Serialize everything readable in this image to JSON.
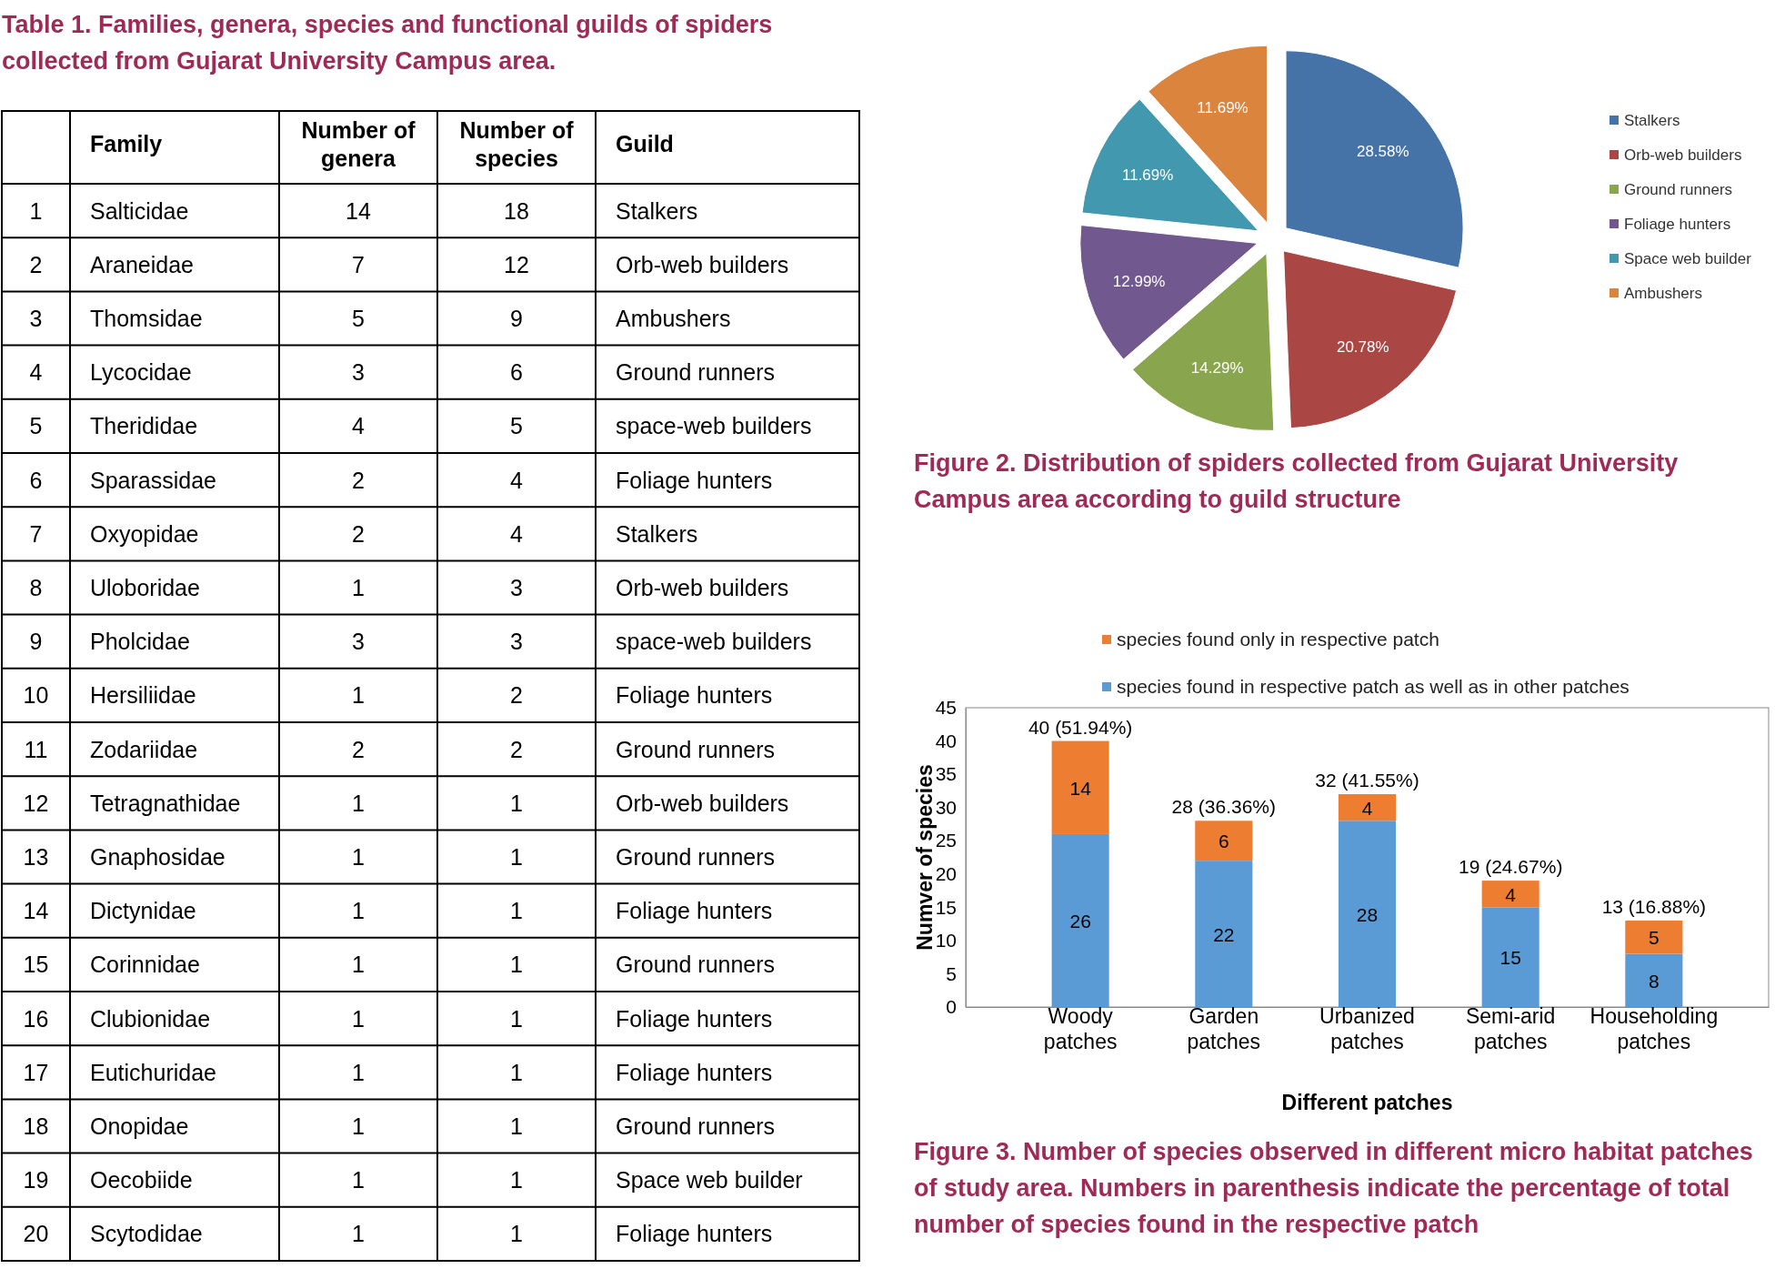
{
  "chart_data": [
    {
      "type": "heatmap",
      "title": "Table 1. Families, genera, species and functional guilds of spiders collected from Gujarat University Campus area.",
      "categories": [
        "Family",
        "Number of genera",
        "Number of species",
        "Guild"
      ],
      "y_categories": [
        "1",
        "2",
        "3",
        "4",
        "5",
        "6",
        "7",
        "8",
        "9",
        "10",
        "11",
        "12",
        "13",
        "14",
        "15",
        "16",
        "17",
        "18",
        "19",
        "20"
      ],
      "cells": [
        [
          null,
          null,
          null,
          null
        ],
        [
          null,
          null,
          null,
          null
        ],
        [
          null,
          null,
          null,
          null
        ],
        [
          null,
          null,
          null,
          null
        ],
        [
          null,
          null,
          null,
          null
        ],
        [
          null,
          null,
          null,
          null
        ],
        [
          null,
          null,
          null,
          null
        ],
        [
          null,
          null,
          null,
          null
        ],
        [
          null,
          null,
          null,
          null
        ],
        [
          null,
          null,
          null,
          null
        ],
        [
          null,
          null,
          null,
          null
        ],
        [
          null,
          null,
          null,
          null
        ],
        [
          null,
          null,
          null,
          null
        ],
        [
          null,
          null,
          null,
          null
        ],
        [
          null,
          null,
          null,
          null
        ],
        [
          null,
          null,
          null,
          null
        ],
        [
          null,
          null,
          null,
          null
        ],
        [
          null,
          null,
          null,
          null
        ],
        [
          null,
          null,
          null,
          null
        ],
        [
          null,
          null,
          null,
          null
        ]
      ],
      "cell_labels": [
        [
          "Salticidae",
          "14",
          "18",
          "Stalkers"
        ],
        [
          "Araneidae",
          "7",
          "12",
          "Orb-web builders"
        ],
        [
          "Thomsidae",
          "5",
          "9",
          "Ambushers"
        ],
        [
          "Lycocidae",
          "3",
          "6",
          "Ground runners"
        ],
        [
          "Therididae",
          "4",
          "5",
          "space-web builders"
        ],
        [
          "Sparassidae",
          "2",
          "4",
          "Foliage hunters"
        ],
        [
          "Oxyopidae",
          "2",
          "4",
          "Stalkers"
        ],
        [
          "Uloboridae",
          "1",
          "3",
          "Orb-web builders"
        ],
        [
          "Pholcidae",
          "3",
          "3",
          "space-web builders"
        ],
        [
          "Hersiliidae",
          "1",
          "2",
          "Foliage hunters"
        ],
        [
          "Zodariidae",
          "2",
          "2",
          "Ground runners"
        ],
        [
          "Tetragnathidae",
          "1",
          "1",
          "Orb-web builders"
        ],
        [
          "Gnaphosidae",
          "1",
          "1",
          "Ground runners"
        ],
        [
          "Dictynidae",
          "1",
          "1",
          "Foliage hunters"
        ],
        [
          "Corinnidae",
          "1",
          "1",
          "Ground runners"
        ],
        [
          "Clubionidae",
          "1",
          "1",
          "Foliage hunters"
        ],
        [
          "Eutichuridae",
          "1",
          "1",
          "Foliage hunters"
        ],
        [
          "Onopidae",
          "1",
          "1",
          "Ground runners"
        ],
        [
          "Oecobiide",
          "1",
          "1",
          "Space web builder"
        ],
        [
          "Scytodidae",
          "1",
          "1",
          "Foliage hunters"
        ]
      ]
    },
    {
      "type": "pie",
      "title": "Figure 2. Distribution of spiders collected from Gujarat University Campus area according to guild structure",
      "categories": [
        "Stalkers",
        "Orb-web builders",
        "Ground runners",
        "Foliage hunters",
        "Space web builder",
        "Ambushers"
      ],
      "values": [
        28.58,
        20.78,
        14.29,
        12.99,
        11.69,
        11.69
      ],
      "value_labels": [
        "28.58%",
        "20.78%",
        "14.29%",
        "12.99%",
        "11.69%",
        "11.69%"
      ],
      "colors": [
        "#4572a7",
        "#aa4643",
        "#89a54e",
        "#71588f",
        "#4198af",
        "#db843d"
      ],
      "legend": "right"
    },
    {
      "type": "bar",
      "title": "Figure 3. Number of species observed in different micro habitat patches of study area. Numbers in parenthesis indicate the percentage of total number of species found in the respective patch",
      "xlabel": "Different patches",
      "ylabel": "Numver of species",
      "categories": [
        "Woody patches",
        "Garden patches",
        "Urbanized patches",
        "Semi-arid patches",
        "Householding patches"
      ],
      "series": [
        {
          "name": "species found in respective patch as well as in other patches",
          "color": "#5b9bd5",
          "values": [
            26,
            22,
            28,
            15,
            8
          ]
        },
        {
          "name": "species found only in respective patch",
          "color": "#ed7d31",
          "values": [
            14,
            6,
            4,
            4,
            5
          ]
        }
      ],
      "stacked": true,
      "data_labels": true,
      "totals": [
        "40 (51.94%)",
        "28 (36.36%)",
        "32 (41.55%)",
        "19 (24.67%)",
        "13 (16.88%)"
      ],
      "ylim": [
        0,
        45
      ],
      "yticks": [
        0,
        5,
        10,
        15,
        20,
        25,
        30,
        35,
        40,
        45
      ],
      "legend": "top"
    }
  ]
}
